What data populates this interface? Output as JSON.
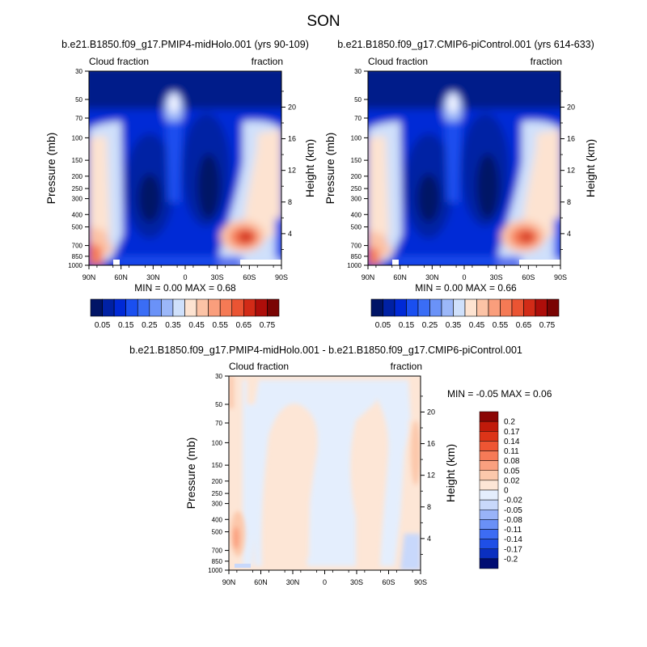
{
  "title": "SON",
  "colors": {
    "top_scale": [
      "#001466",
      "#0021a4",
      "#0029d6",
      "#1a4ff0",
      "#3a6df6",
      "#6a92f8",
      "#9bb7f9",
      "#cfe0fb",
      "#fde3d1",
      "#fcc3a6",
      "#fa9e7c",
      "#f57a55",
      "#ea5433",
      "#d22b17",
      "#ae0e0a",
      "#7a0403"
    ],
    "diff_scale": [
      "#000d73",
      "#0a2fc0",
      "#1f4fe6",
      "#3d6cf3",
      "#6a90f6",
      "#99b3f8",
      "#c8d8fb",
      "#e4eefd",
      "#fde6d6",
      "#fcc8ab",
      "#faa07f",
      "#f67a57",
      "#ee5533",
      "#dc3418",
      "#c01a0a",
      "#8b0604"
    ]
  },
  "chart_data": [
    {
      "type": "heatmap",
      "id": "control-left",
      "title": "b.e21.B1850.f09_g17.PMIP4-midHolo.001 (yrs 90-109)",
      "left_label": "Cloud fraction",
      "right_label": "fraction",
      "ylabel": "Pressure (mb)",
      "y2label": "Height (km)",
      "x_ticks": [
        "90N",
        "60N",
        "30N",
        "0",
        "30S",
        "60S",
        "90S"
      ],
      "p_ticks": [
        1000,
        850,
        700,
        500,
        400,
        300,
        250,
        200,
        150,
        100,
        70,
        50,
        30
      ],
      "h_ticks": [
        4,
        8,
        12,
        16,
        20
      ],
      "min_max": "MIN =   0.00   MAX =    0.68",
      "levels": [
        "0.05",
        "0.15",
        "0.25",
        "0.35",
        "0.45",
        "0.55",
        "0.65",
        "0.75"
      ]
    },
    {
      "type": "heatmap",
      "id": "control-right",
      "title": "b.e21.B1850.f09_g17.CMIP6-piControl.001 (yrs 614-633)",
      "left_label": "Cloud fraction",
      "right_label": "fraction",
      "ylabel": "Pressure (mb)",
      "y2label": "Height (km)",
      "x_ticks": [
        "90N",
        "60N",
        "30N",
        "0",
        "30S",
        "60S",
        "90S"
      ],
      "p_ticks": [
        1000,
        850,
        700,
        500,
        400,
        300,
        250,
        200,
        150,
        100,
        70,
        50,
        30
      ],
      "h_ticks": [
        4,
        8,
        12,
        16,
        20
      ],
      "min_max": "MIN =   0.00   MAX =    0.66",
      "levels": [
        "0.05",
        "0.15",
        "0.25",
        "0.35",
        "0.45",
        "0.55",
        "0.65",
        "0.75"
      ]
    },
    {
      "type": "heatmap",
      "id": "difference",
      "title": "b.e21.B1850.f09_g17.PMIP4-midHolo.001 - b.e21.B1850.f09_g17.CMIP6-piControl.001",
      "left_label": "Cloud fraction",
      "right_label": "fraction",
      "ylabel": "Pressure (mb)",
      "y2label": "Height (km)",
      "x_ticks": [
        "90N",
        "60N",
        "30N",
        "0",
        "30S",
        "60S",
        "90S"
      ],
      "p_ticks": [
        1000,
        850,
        700,
        500,
        400,
        300,
        250,
        200,
        150,
        100,
        70,
        50,
        30
      ],
      "h_ticks": [
        4,
        8,
        12,
        16,
        20
      ],
      "min_max": "MIN =  -0.05   MAX =    0.06",
      "levels": [
        "0.2",
        "0.17",
        "0.14",
        "0.11",
        "0.08",
        "0.05",
        "0.02",
        "0",
        "-0.02",
        "-0.05",
        "-0.08",
        "-0.11",
        "-0.14",
        "-0.17",
        "-0.2"
      ]
    }
  ]
}
